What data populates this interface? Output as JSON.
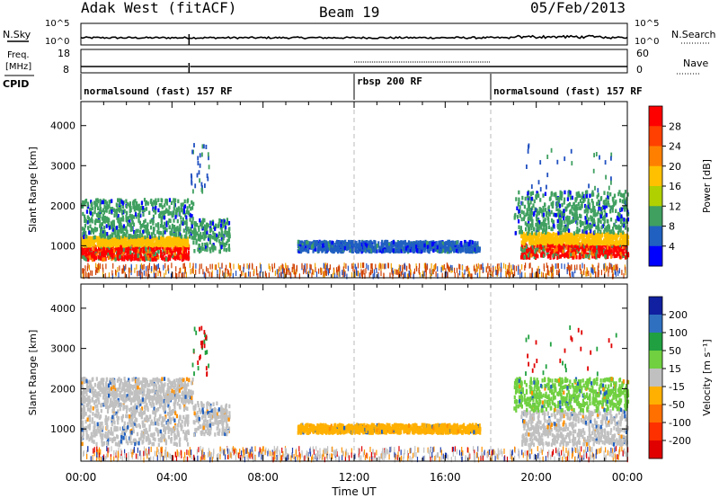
{
  "header": {
    "radar": "Adak West (fitACF)",
    "beam": "Beam 19",
    "date": "05/Feb/2013"
  },
  "top_panels": {
    "nsky_label": "N.Sky",
    "nsearch_label": "N.Search",
    "freq_label_1": "Freq.",
    "freq_label_2": "[MHz]",
    "nave_label": "Nave",
    "cpid_label": "CPID",
    "left_ticks_1": [
      "10^5",
      "10^0"
    ],
    "right_ticks_1": [
      "10^5",
      "10^0"
    ],
    "left_ticks_2": [
      "18",
      "8"
    ],
    "right_ticks_2": [
      "60",
      "0"
    ],
    "cpid_segments": [
      {
        "label": "normalsound (fast) 157 RF",
        "start_h": 0,
        "end_h": 12
      },
      {
        "label": "rbsp 200 RF",
        "start_h": 12,
        "end_h": 18
      },
      {
        "label": "normalsound (fast) 157 RF",
        "start_h": 18,
        "end_h": 24
      }
    ]
  },
  "colorbars": {
    "power": {
      "label": "Power [dB]",
      "ticks": [
        "28",
        "24",
        "20",
        "16",
        "12",
        "8",
        "4"
      ],
      "colors": [
        "#ff0000",
        "#ff4000",
        "#ff8000",
        "#ffc000",
        "#b0d000",
        "#40a060",
        "#2060c0",
        "#0000ff"
      ]
    },
    "velocity": {
      "label": "Velocity [m s⁻¹]",
      "ticks": [
        "200",
        "100",
        "50",
        "15",
        "-15",
        "-50",
        "-100",
        "-200"
      ],
      "colors": [
        "#1020a0",
        "#3070c0",
        "#20a040",
        "#70d040",
        "#c0c0c0",
        "#ffb000",
        "#ff7000",
        "#ff3000",
        "#e00000"
      ]
    }
  },
  "chart_data": [
    {
      "type": "heatmap",
      "title": "",
      "ylabel": "Slant Range [km]",
      "ylim": [
        200,
        4600
      ],
      "yticks": [
        "4000",
        "3000",
        "2000",
        "1000"
      ],
      "quantity": "Power [dB]",
      "bands": [
        {
          "t0": 0.0,
          "t1": 4.7,
          "r0": 700,
          "r1": 1050,
          "level": 28
        },
        {
          "t0": 0.0,
          "t1": 4.7,
          "r0": 1050,
          "r1": 1250,
          "level": 16
        },
        {
          "t0": 0.0,
          "t1": 4.9,
          "r0": 1250,
          "r1": 2200,
          "level": 8
        },
        {
          "t0": 4.9,
          "t1": 6.5,
          "r0": 900,
          "r1": 1700,
          "level": 8
        },
        {
          "t0": 9.5,
          "t1": 17.5,
          "r0": 900,
          "r1": 1150,
          "level": 6
        },
        {
          "t0": 19.3,
          "t1": 24.0,
          "r0": 750,
          "r1": 1100,
          "level": 28
        },
        {
          "t0": 19.3,
          "t1": 24.0,
          "r0": 1100,
          "r1": 1350,
          "level": 16
        },
        {
          "t0": 19.0,
          "t1": 24.0,
          "r0": 1350,
          "r1": 2400,
          "level": 8
        }
      ]
    },
    {
      "type": "heatmap",
      "title": "",
      "ylabel": "Slant Range [km]",
      "ylim": [
        200,
        4600
      ],
      "yticks": [
        "4000",
        "3000",
        "2000",
        "1000"
      ],
      "quantity": "Velocity [m s⁻¹]",
      "bands": [
        {
          "t0": 0.0,
          "t1": 4.7,
          "r0": 650,
          "r1": 1700,
          "level": 0
        },
        {
          "t0": 0.0,
          "t1": 4.9,
          "r0": 1700,
          "r1": 2300,
          "level": 0
        },
        {
          "t0": 4.9,
          "t1": 6.5,
          "r0": 900,
          "r1": 1700,
          "level": 0
        },
        {
          "t0": 9.5,
          "t1": 17.5,
          "r0": 950,
          "r1": 1150,
          "level": -40
        },
        {
          "t0": 19.3,
          "t1": 24.0,
          "r0": 650,
          "r1": 1500,
          "level": 0
        },
        {
          "t0": 19.0,
          "t1": 24.0,
          "r0": 1500,
          "r1": 2300,
          "level": 20
        }
      ]
    }
  ],
  "xaxis": {
    "label": "Time UT",
    "ticks": [
      "00:00",
      "04:00",
      "08:00",
      "12:00",
      "16:00",
      "20:00",
      "00:00"
    ]
  }
}
